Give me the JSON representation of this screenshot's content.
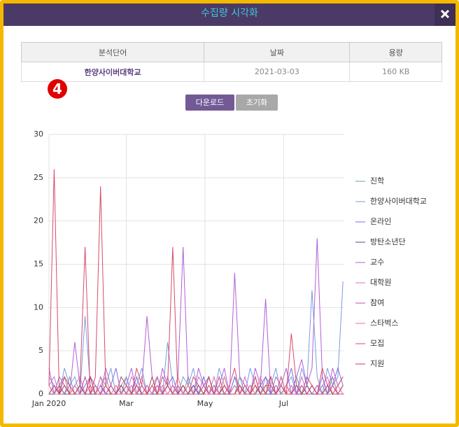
{
  "modal": {
    "title": "수집량 시각화"
  },
  "badge": "4",
  "table": {
    "columns": [
      "분석단어",
      "날짜",
      "용량"
    ],
    "rows": [
      [
        "한양사이버대학교",
        "2021-03-03",
        "160 KB"
      ]
    ]
  },
  "buttons": [
    "다운로드",
    "초기화"
  ],
  "chart_data": {
    "type": "line",
    "x": [
      0,
      4,
      8,
      12,
      16,
      20,
      24,
      28,
      32,
      36,
      40,
      44,
      48,
      52,
      56,
      60,
      64,
      68,
      72,
      76,
      80,
      84,
      88,
      92,
      96,
      100,
      104,
      108,
      112,
      116,
      120,
      124,
      128,
      132,
      136,
      140,
      144,
      148,
      152,
      156,
      160,
      164,
      168,
      172,
      176,
      180,
      184,
      188,
      192,
      196,
      200,
      204,
      208,
      212,
      216,
      220,
      224,
      228
    ],
    "xlim": [
      0,
      229
    ],
    "xticks": [
      {
        "value": 0,
        "label": "Jan 2020"
      },
      {
        "value": 60,
        "label": "Mar"
      },
      {
        "value": 121,
        "label": "May"
      },
      {
        "value": 182,
        "label": "Jul"
      }
    ],
    "ylim": [
      0,
      30
    ],
    "yticks": [
      0,
      5,
      10,
      15,
      20,
      25,
      30
    ],
    "grid": true,
    "legend": "right",
    "series": [
      {
        "name": "진학",
        "color": "#5fa8a0",
        "values": [
          0,
          1,
          0,
          0,
          2,
          0,
          1,
          0,
          0,
          1,
          0,
          0,
          1,
          0,
          0,
          2,
          0,
          0,
          1,
          0,
          0,
          1,
          0,
          0,
          0,
          1,
          0,
          2,
          0,
          0,
          1,
          0,
          0,
          1,
          0,
          0,
          0,
          2,
          0,
          1,
          0,
          0,
          1,
          0,
          0,
          1,
          0,
          0,
          2,
          0,
          1,
          0,
          0,
          1,
          0,
          2,
          0,
          1
        ]
      },
      {
        "name": "한양사이버대학교",
        "color": "#7b9be0",
        "values": [
          2,
          1,
          0,
          3,
          1,
          2,
          0,
          9,
          1,
          0,
          2,
          1,
          3,
          0,
          1,
          2,
          0,
          1,
          3,
          0,
          1,
          2,
          0,
          6,
          1,
          0,
          2,
          1,
          3,
          0,
          1,
          2,
          0,
          3,
          1,
          0,
          2,
          1,
          0,
          3,
          1,
          0,
          2,
          1,
          3,
          0,
          1,
          2,
          0,
          3,
          1,
          12,
          2,
          0,
          3,
          1,
          2,
          13
        ]
      },
      {
        "name": "온라인",
        "color": "#7b6fe0",
        "values": [
          1,
          0,
          2,
          1,
          0,
          1,
          0,
          1,
          2,
          0,
          1,
          0,
          1,
          3,
          0,
          1,
          0,
          2,
          0,
          1,
          0,
          1,
          0,
          1,
          2,
          0,
          1,
          0,
          1,
          0,
          2,
          0,
          1,
          0,
          1,
          0,
          2,
          0,
          1,
          0,
          0,
          1,
          2,
          0,
          1,
          0,
          1,
          3,
          0,
          1,
          0,
          1,
          0,
          2,
          0,
          1,
          3,
          1
        ]
      },
      {
        "name": "방탄소년단",
        "color": "#5a4a8a",
        "values": [
          0,
          0,
          1,
          0,
          0,
          0,
          1,
          0,
          0,
          0,
          1,
          0,
          0,
          0,
          1,
          0,
          0,
          0,
          0,
          1,
          0,
          0,
          0,
          1,
          0,
          0,
          0,
          0,
          1,
          0,
          0,
          0,
          1,
          0,
          0,
          0,
          0,
          1,
          0,
          0,
          0,
          1,
          0,
          0,
          0,
          0,
          1,
          0,
          0,
          0,
          1,
          0,
          0,
          0,
          0,
          1,
          0,
          0
        ]
      },
      {
        "name": "교수",
        "color": "#b060d8",
        "values": [
          3,
          0,
          1,
          2,
          0,
          6,
          1,
          0,
          2,
          1,
          0,
          3,
          1,
          0,
          2,
          1,
          3,
          0,
          1,
          9,
          2,
          0,
          3,
          1,
          0,
          2,
          17,
          1,
          0,
          3,
          1,
          2,
          0,
          1,
          3,
          0,
          14,
          2,
          1,
          0,
          3,
          1,
          11,
          0,
          2,
          1,
          3,
          0,
          2,
          4,
          1,
          3,
          18,
          2,
          0,
          3,
          1,
          2
        ]
      },
      {
        "name": "대학원",
        "color": "#d070c8",
        "values": [
          1,
          2,
          0,
          1,
          0,
          1,
          2,
          0,
          1,
          0,
          2,
          0,
          1,
          0,
          1,
          0,
          2,
          1,
          0,
          1,
          0,
          1,
          0,
          2,
          0,
          1,
          0,
          1,
          0,
          2,
          1,
          0,
          2,
          0,
          1,
          0,
          1,
          0,
          2,
          0,
          1,
          0,
          1,
          2,
          0,
          1,
          0,
          1,
          0,
          2,
          0,
          1,
          0,
          1,
          2,
          0,
          1,
          0
        ]
      },
      {
        "name": "참여",
        "color": "#c050a0",
        "values": [
          0,
          1,
          0,
          0,
          1,
          0,
          0,
          2,
          0,
          1,
          0,
          0,
          1,
          0,
          0,
          1,
          0,
          0,
          1,
          0,
          0,
          2,
          0,
          0,
          1,
          0,
          0,
          1,
          0,
          0,
          1,
          0,
          0,
          0,
          1,
          0,
          0,
          1,
          0,
          0,
          2,
          0,
          0,
          1,
          0,
          0,
          1,
          0,
          0,
          1,
          0,
          0,
          1,
          0,
          0,
          1,
          0,
          0
        ]
      },
      {
        "name": "스타벅스",
        "color": "#e07090",
        "values": [
          1,
          0,
          1,
          2,
          0,
          1,
          0,
          0,
          1,
          0,
          1,
          2,
          0,
          1,
          0,
          0,
          1,
          0,
          2,
          0,
          1,
          0,
          1,
          0,
          0,
          2,
          0,
          1,
          0,
          1,
          0,
          0,
          1,
          0,
          2,
          0,
          1,
          0,
          0,
          1,
          0,
          2,
          0,
          1,
          0,
          0,
          1,
          0,
          1,
          0,
          0,
          1,
          0,
          0,
          1,
          2,
          0,
          1
        ]
      },
      {
        "name": "모집",
        "color": "#d84a6a",
        "values": [
          1,
          26,
          0,
          2,
          1,
          0,
          1,
          17,
          0,
          2,
          24,
          1,
          0,
          0,
          2,
          1,
          0,
          3,
          1,
          0,
          1,
          0,
          2,
          1,
          17,
          0,
          1,
          0,
          2,
          1,
          0,
          1,
          0,
          2,
          0,
          1,
          3,
          0,
          1,
          0,
          2,
          0,
          1,
          1,
          0,
          2,
          0,
          7,
          1,
          0,
          2,
          1,
          0,
          3,
          1,
          0,
          1,
          2
        ]
      },
      {
        "name": "지원",
        "color": "#c04050",
        "values": [
          0,
          1,
          0,
          1,
          0,
          0,
          1,
          0,
          2,
          0,
          0,
          1,
          0,
          0,
          1,
          0,
          0,
          1,
          0,
          0,
          2,
          0,
          0,
          1,
          0,
          0,
          1,
          0,
          0,
          1,
          0,
          2,
          0,
          0,
          1,
          0,
          0,
          1,
          0,
          0,
          1,
          0,
          0,
          2,
          0,
          1,
          0,
          0,
          1,
          0,
          0,
          1,
          0,
          0,
          1,
          0,
          0,
          1
        ]
      }
    ]
  }
}
